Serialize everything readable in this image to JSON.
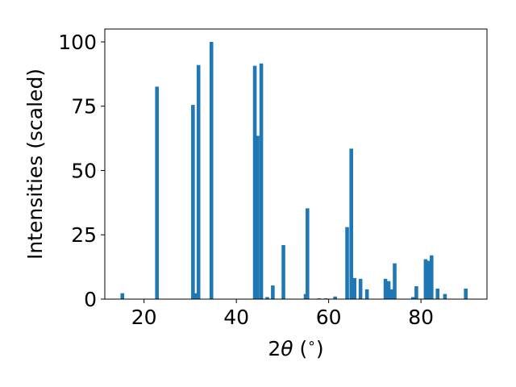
{
  "chart_data": {
    "type": "bar",
    "xlabel": "2θ (°)",
    "ylabel": "Intensities (scaled)",
    "xlim": [
      11.5,
      94.3
    ],
    "ylim": [
      0,
      105
    ],
    "xticks": [
      20,
      40,
      60,
      80
    ],
    "yticks": [
      0,
      25,
      50,
      75,
      100
    ],
    "grid": false,
    "color": "#1f77b4",
    "bar_width": 0.8,
    "x": [
      15.3,
      22.8,
      30.6,
      31.2,
      31.8,
      34.6,
      44.0,
      44.6,
      45.4,
      46.7,
      47.9,
      50.2,
      55.0,
      55.4,
      57.9,
      59.4,
      61.4,
      64.0,
      64.9,
      65.6,
      66.9,
      68.3,
      72.3,
      73.0,
      73.7,
      74.3,
      78.3,
      79.0,
      81.0,
      81.7,
      82.3,
      83.6,
      85.2,
      89.7
    ],
    "values": [
      2.3,
      82.6,
      75.5,
      2.3,
      91.0,
      100.0,
      90.7,
      63.5,
      91.6,
      0.8,
      5.3,
      21.0,
      2.0,
      35.3,
      0.3,
      0.3,
      1.0,
      28.0,
      58.5,
      8.2,
      7.9,
      3.8,
      7.9,
      7.0,
      3.8,
      13.9,
      0.8,
      5.0,
      15.5,
      14.9,
      17.0,
      4.1,
      2.0,
      4.1
    ]
  }
}
